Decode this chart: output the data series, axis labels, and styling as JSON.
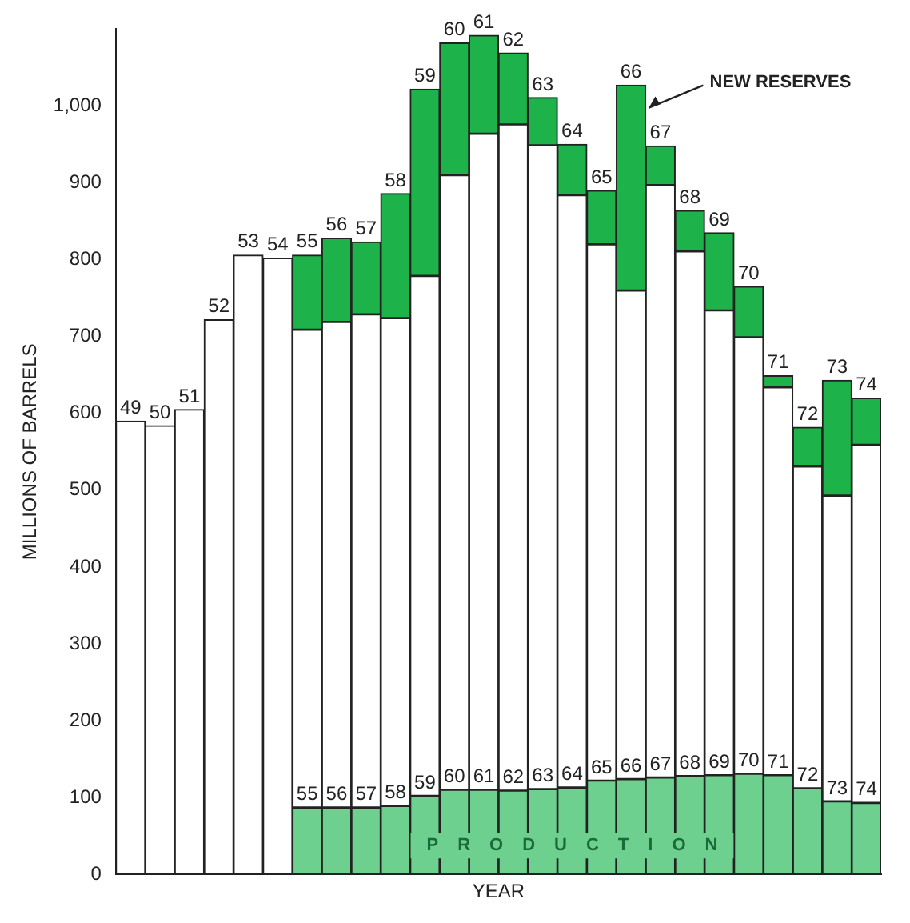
{
  "chart_data": {
    "type": "bar",
    "stacked": true,
    "xlabel": "YEAR",
    "ylabel": "MILLIONS OF BARRELS",
    "categories": [
      "49",
      "50",
      "51",
      "52",
      "53",
      "54",
      "55",
      "56",
      "57",
      "58",
      "59",
      "60",
      "61",
      "62",
      "63",
      "64",
      "65",
      "66",
      "67",
      "68",
      "69",
      "70",
      "71",
      "72",
      "73",
      "74"
    ],
    "series": [
      {
        "name": "PRODUCTION",
        "color": "#6dd08f",
        "values": [
          null,
          null,
          null,
          null,
          null,
          null,
          87,
          87,
          87,
          89,
          102,
          110,
          110,
          109,
          111,
          113,
          122,
          124,
          126,
          128,
          129,
          131,
          129,
          112,
          95,
          93
        ]
      },
      {
        "color": "#ffffff",
        "values": [
          590,
          584,
          605,
          722,
          806,
          802,
          622,
          632,
          642,
          635,
          677,
          800,
          854,
          867,
          838,
          771,
          698,
          636,
          771,
          683,
          605,
          568,
          505,
          419,
          398,
          466
        ]
      },
      {
        "name": "NEW RESERVES",
        "color": "#1db34a",
        "values": [
          null,
          null,
          null,
          null,
          null,
          null,
          97,
          109,
          94,
          162,
          243,
          172,
          128,
          93,
          62,
          66,
          70,
          267,
          51,
          53,
          101,
          66,
          15,
          51,
          150,
          61
        ]
      }
    ],
    "ylim": [
      0,
      1100
    ],
    "yticks": [
      0,
      100,
      200,
      300,
      400,
      500,
      600,
      700,
      800,
      900,
      {
        "value": 1000,
        "label": "1,000"
      }
    ],
    "grid": false,
    "legend": false
  }
}
